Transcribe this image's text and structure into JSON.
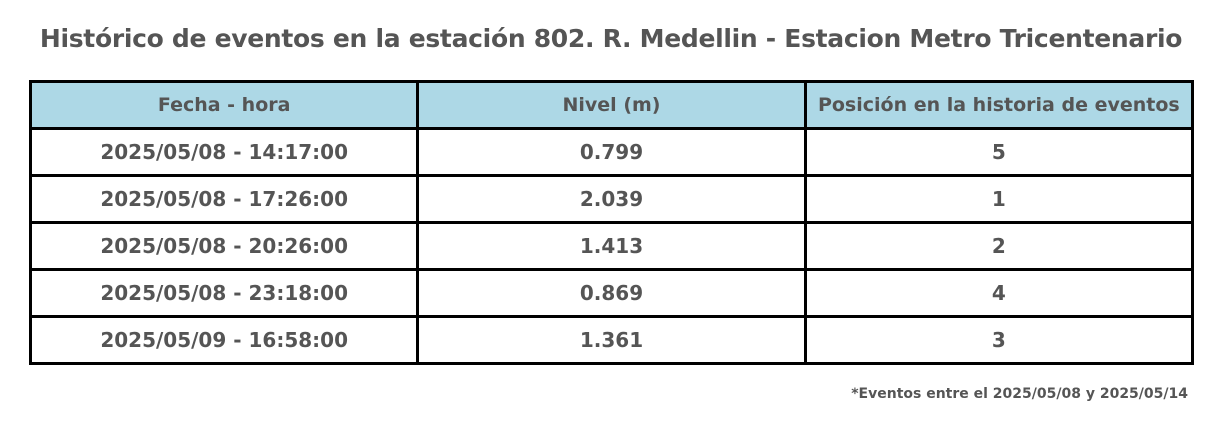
{
  "header": {
    "title": "Histórico de eventos en la estación 802. R. Medellin - Estacion Metro Tricentenario"
  },
  "table": {
    "columns": [
      "Fecha - hora",
      "Nivel (m)",
      "Posición en la historia de eventos"
    ],
    "rows": [
      [
        "2025/05/08 - 14:17:00",
        0.799,
        5
      ],
      [
        "2025/05/08 - 17:26:00",
        2.039,
        1
      ],
      [
        "2025/05/08 - 20:26:00",
        1.413,
        2
      ],
      [
        "2025/05/08 - 23:18:00",
        0.869,
        4
      ],
      [
        "2025/05/09 - 16:58:00",
        1.361,
        3
      ]
    ]
  },
  "footnote": "*Eventos entre el 2025/05/08 y 2025/05/14"
}
